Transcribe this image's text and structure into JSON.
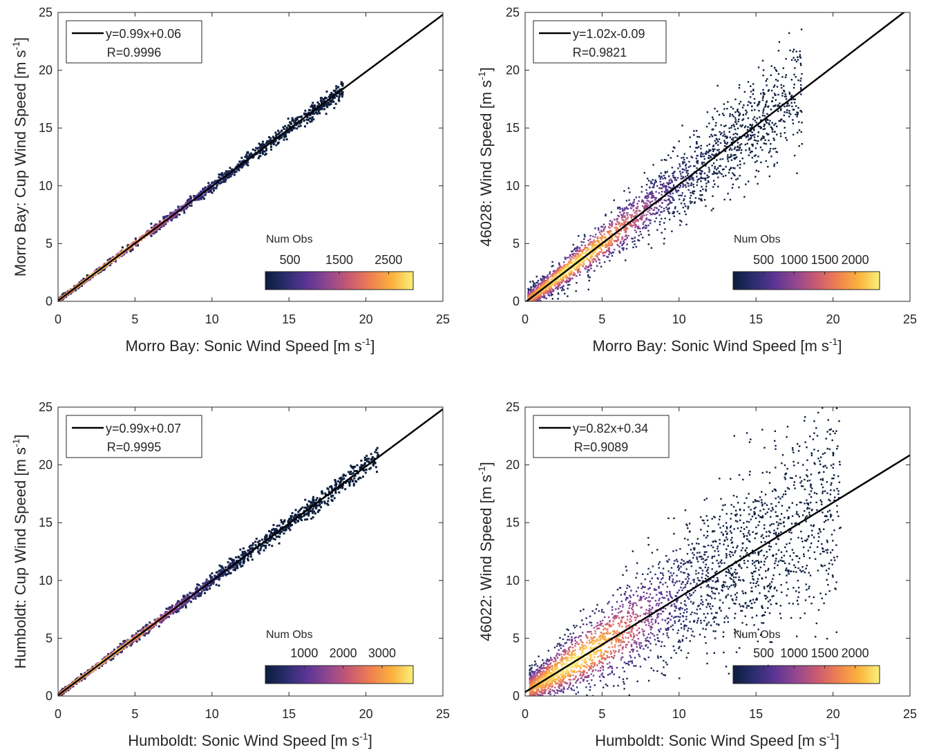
{
  "colors": {
    "axis": "#262626",
    "fit_line": "#000000",
    "colormap": [
      "#0b1d3b",
      "#2a2d6e",
      "#5a3593",
      "#93478f",
      "#c95a72",
      "#ee7f51",
      "#fbb33d",
      "#f9f07a"
    ]
  },
  "colorbar_title": "Num Obs",
  "chart_data": [
    {
      "type": "scatter",
      "id": "panel-1",
      "title": "",
      "xlabel": "Morro Bay: Sonic Wind Speed [m s",
      "ylabel": "Morro Bay: Cup Wind Speed [m s",
      "unit_exponent": "-1",
      "unit_close": "]",
      "xlim": [
        0,
        25
      ],
      "ylim": [
        0,
        25
      ],
      "xticks": [
        "0",
        "5",
        "10",
        "15",
        "20",
        "25"
      ],
      "yticks": [
        "0",
        "5",
        "10",
        "15",
        "20",
        "25"
      ],
      "fit": {
        "slope": 0.99,
        "intercept": 0.06
      },
      "legend": {
        "position": "top-left",
        "fit_label": "y=0.99x+0.06",
        "r_label": "R=0.9996"
      },
      "x_extent": [
        0.1,
        18.5
      ],
      "scatter_width": 0.15,
      "colorbar": {
        "title": "Num Obs",
        "ticks": [
          "500",
          "1500",
          "2500"
        ],
        "tick_values": [
          500,
          1500,
          2500
        ],
        "max": 3000
      }
    },
    {
      "type": "scatter",
      "id": "panel-2",
      "title": "",
      "xlabel": "Morro Bay: Sonic Wind Speed [m s",
      "ylabel": "46028: Wind Speed [m s",
      "unit_exponent": "-1",
      "unit_close": "]",
      "xlim": [
        0,
        25
      ],
      "ylim": [
        0,
        25
      ],
      "xticks": [
        "0",
        "5",
        "10",
        "15",
        "20",
        "25"
      ],
      "yticks": [
        "0",
        "5",
        "10",
        "15",
        "20",
        "25"
      ],
      "fit": {
        "slope": 1.02,
        "intercept": -0.09
      },
      "legend": {
        "position": "top-left",
        "fit_label": "y=1.02x-0.09",
        "r_label": "R=0.9821"
      },
      "x_extent": [
        0.2,
        18.0
      ],
      "scatter_width": 0.9,
      "colorbar": {
        "title": "Num Obs",
        "ticks": [
          "500",
          "1000",
          "1500",
          "2000"
        ],
        "tick_values": [
          500,
          1000,
          1500,
          2000
        ],
        "max": 2400
      }
    },
    {
      "type": "scatter",
      "id": "panel-3",
      "title": "",
      "xlabel": "Humboldt: Sonic Wind Speed [m s",
      "ylabel": "Humboldt: Cup Wind Speed [m s",
      "unit_exponent": "-1",
      "unit_close": "]",
      "xlim": [
        0,
        25
      ],
      "ylim": [
        0,
        25
      ],
      "xticks": [
        "0",
        "5",
        "10",
        "15",
        "20",
        "25"
      ],
      "yticks": [
        "0",
        "5",
        "10",
        "15",
        "20",
        "25"
      ],
      "fit": {
        "slope": 0.99,
        "intercept": 0.07
      },
      "legend": {
        "position": "top-left",
        "fit_label": "y=0.99x+0.07",
        "r_label": "R=0.9995"
      },
      "x_extent": [
        0.1,
        20.8
      ],
      "scatter_width": 0.17,
      "colorbar": {
        "title": "Num Obs",
        "ticks": [
          "1000",
          "2000",
          "3000"
        ],
        "tick_values": [
          1000,
          2000,
          3000
        ],
        "max": 3800
      }
    },
    {
      "type": "scatter",
      "id": "panel-4",
      "title": "",
      "xlabel": "Humboldt: Sonic Wind Speed [m s",
      "ylabel": "46022: Wind Speed [m s",
      "unit_exponent": "-1",
      "unit_close": "]",
      "xlim": [
        0,
        25
      ],
      "ylim": [
        0,
        25
      ],
      "xticks": [
        "0",
        "5",
        "10",
        "15",
        "20",
        "25"
      ],
      "yticks": [
        "0",
        "5",
        "10",
        "15",
        "20",
        "25"
      ],
      "fit": {
        "slope": 0.82,
        "intercept": 0.34
      },
      "legend": {
        "position": "top-left",
        "fit_label": "y=0.82x+0.34",
        "r_label": "R=0.9089"
      },
      "x_extent": [
        0.3,
        20.5
      ],
      "scatter_width": 1.6,
      "colorbar": {
        "title": "Num Obs",
        "ticks": [
          "500",
          "1000",
          "1500",
          "2000"
        ],
        "tick_values": [
          500,
          1000,
          1500,
          2000
        ],
        "max": 2400
      }
    }
  ]
}
